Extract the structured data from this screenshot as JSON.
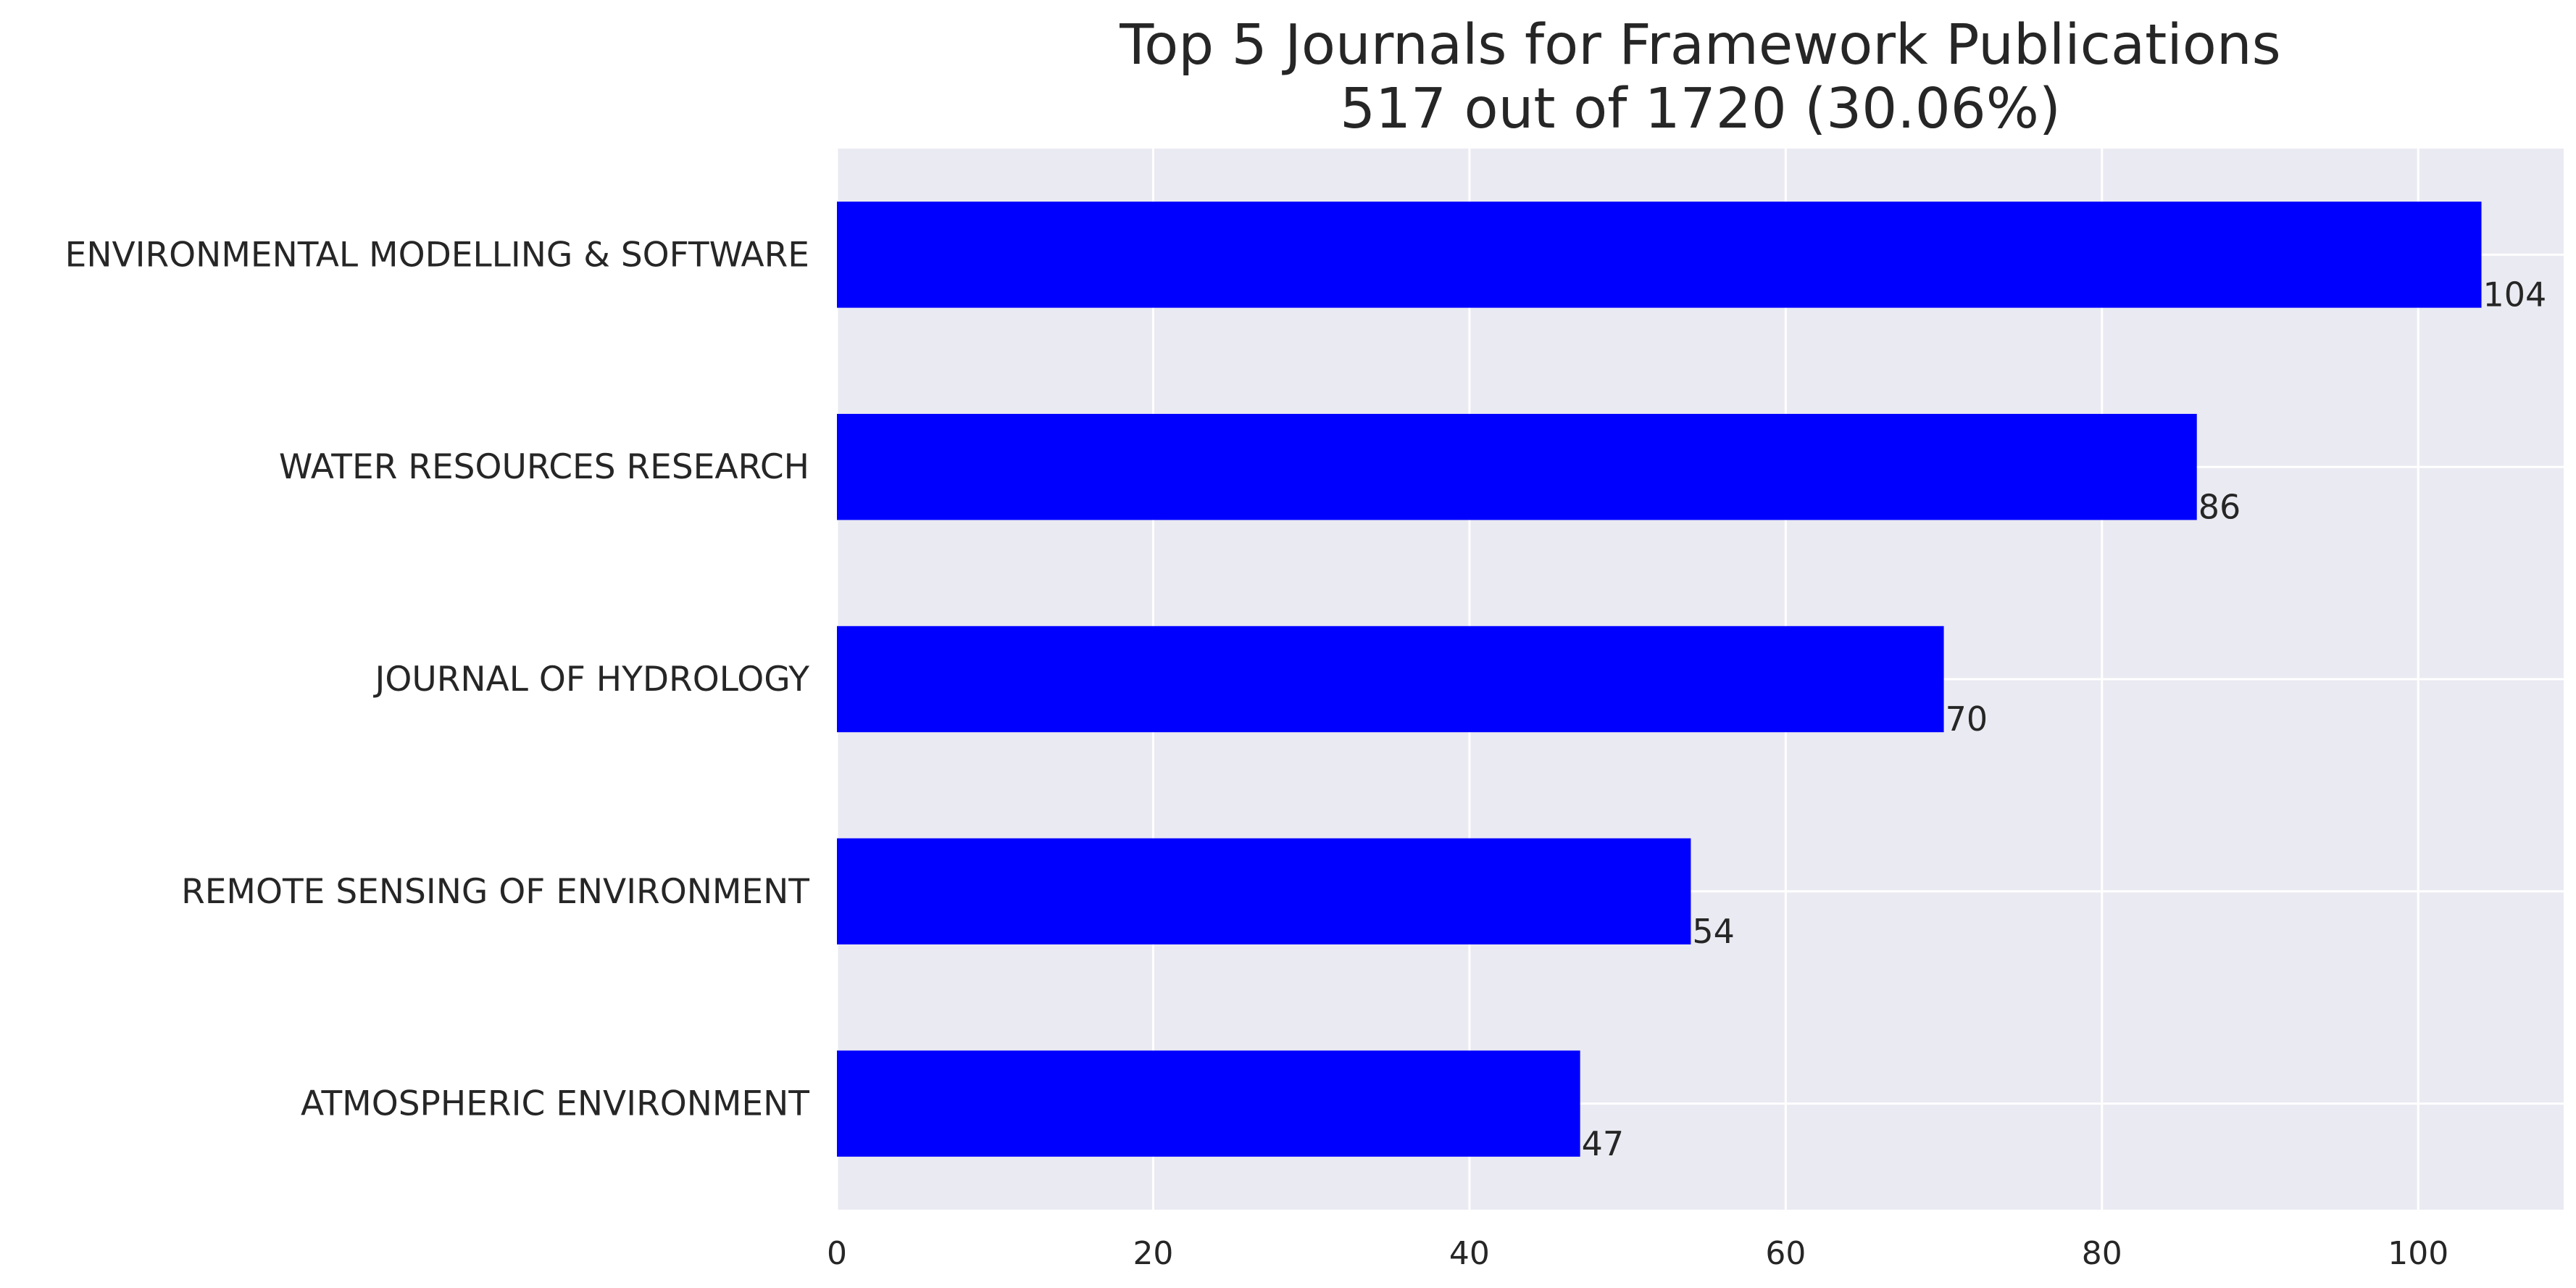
{
  "chart_data": {
    "type": "bar",
    "orientation": "horizontal",
    "title": "Top 5 Journals for Framework Publications",
    "subtitle": "517 out of 1720 (30.06%)",
    "xlabel": "",
    "ylabel": "",
    "categories": [
      "ENVIRONMENTAL MODELLING & SOFTWARE",
      "WATER RESOURCES RESEARCH",
      "JOURNAL OF HYDROLOGY",
      "REMOTE SENSING OF ENVIRONMENT",
      "ATMOSPHERIC ENVIRONMENT"
    ],
    "values": [
      104,
      86,
      70,
      54,
      47
    ],
    "data_labels": [
      "104",
      "86",
      "70",
      "54",
      "47"
    ],
    "xlim": [
      0,
      109.2
    ],
    "xticks": [
      0,
      20,
      40,
      60,
      80,
      100
    ],
    "xtick_labels": [
      "0",
      "20",
      "40",
      "60",
      "80",
      "100"
    ],
    "grid": true,
    "legend": "none",
    "colors": {
      "bar": "#0000ff",
      "plot_background": "#eaeaf2",
      "grid": "#ffffff",
      "text": "#262626"
    }
  }
}
